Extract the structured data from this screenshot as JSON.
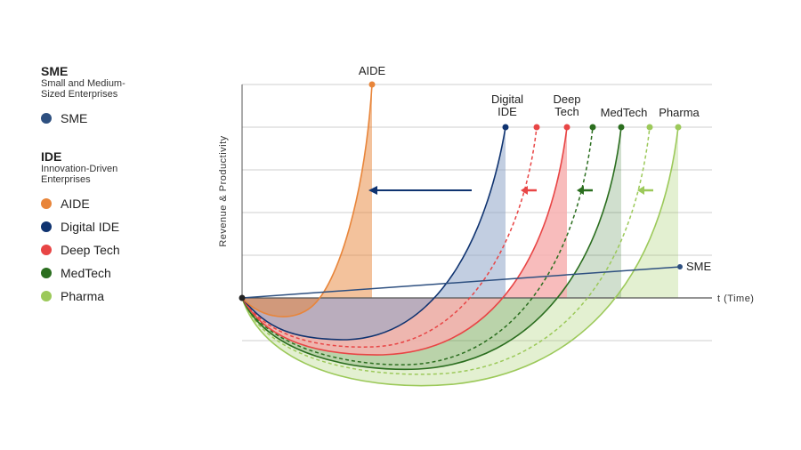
{
  "legend": {
    "sme": {
      "title": "SME",
      "subtitle_line1": "Small and Medium-",
      "subtitle_line2": "Sized Enterprises",
      "items": [
        {
          "label": "SME",
          "color": "#2e5080"
        }
      ]
    },
    "ide": {
      "title": "IDE",
      "subtitle_line1": "Innovation-Driven",
      "subtitle_line2": "Enterprises",
      "items": [
        {
          "label": "AIDE",
          "color": "#e8853a"
        },
        {
          "label": "Digital IDE",
          "color": "#0f3370"
        },
        {
          "label": "Deep Tech",
          "color": "#e84545"
        },
        {
          "label": "MedTech",
          "color": "#2b6e1f"
        },
        {
          "label": "Pharma",
          "color": "#9cc95a"
        }
      ]
    }
  },
  "chart_data": {
    "type": "line",
    "xlabel": "t (Time)",
    "ylabel": "Revenue & Productivity",
    "grid": "horizontal",
    "series_labels": {
      "aide": "AIDE",
      "digital_ide_line1": "Digital",
      "digital_ide_line2": "IDE",
      "deep_tech_line1": "Deep",
      "deep_tech_line2": "Tech",
      "medtech": "MedTech",
      "pharma": "Pharma",
      "sme": "SME"
    },
    "colors": {
      "aide": "#e8853a",
      "digital_ide": "#0f3370",
      "deep_tech": "#e84545",
      "medtech": "#2b6e1f",
      "pharma": "#9cc95a",
      "sme": "#2e5080"
    }
  }
}
